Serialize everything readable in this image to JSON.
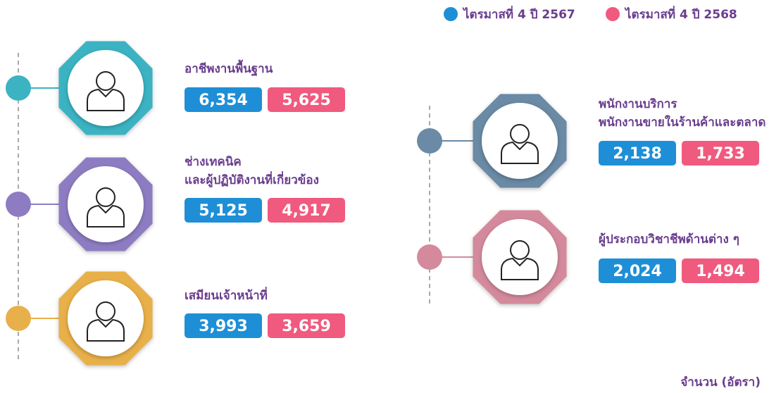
{
  "legend": [
    {
      "label": "ไตรมาสที่ 4 ปี 2567",
      "color": "#1e8fd6"
    },
    {
      "label": "ไตรมาสที่ 4 ปี 2568",
      "color": "#f05a7e"
    }
  ],
  "items": [
    {
      "label": [
        "อาชีพงานพื้นฐาน"
      ],
      "values": [
        "6,354",
        "5,625"
      ],
      "color": "#3bb3c3"
    },
    {
      "label": [
        "ช่างเทคนิค",
        "และผู้ปฏิบัติงานที่เกี่ยวข้อง"
      ],
      "values": [
        "5,125",
        "4,917"
      ],
      "color": "#8e7cc3"
    },
    {
      "label": [
        "เสมียนเจ้าหน้าที่"
      ],
      "values": [
        "3,993",
        "3,659"
      ],
      "color": "#e8b04a"
    },
    {
      "label": [
        "พนักงานบริการ",
        "พนักงานขายในร้านค้าและตลาด"
      ],
      "values": [
        "2,138",
        "1,733"
      ],
      "color": "#6a8aa5"
    },
    {
      "label": [
        "ผู้ประกอบวิชาชีพด้านต่าง ๆ"
      ],
      "values": [
        "2,024",
        "1,494"
      ],
      "color": "#d48a9c"
    }
  ],
  "footer": "จำนวน (อัตรา)"
}
